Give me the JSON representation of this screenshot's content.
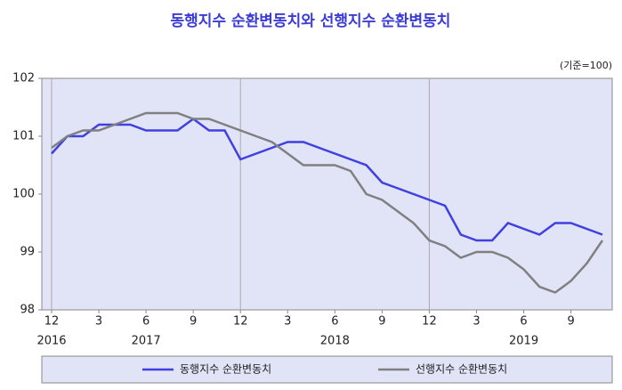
{
  "chart_data": {
    "type": "line",
    "title": "동행지수 순환변동치와 선행지수 순환변동치",
    "unit_label": "(기준=100)",
    "categories": [
      "12",
      null,
      null,
      "3",
      null,
      null,
      "6",
      null,
      null,
      "9",
      null,
      null,
      "12",
      null,
      null,
      "3",
      null,
      null,
      "6",
      null,
      null,
      "9",
      null,
      null,
      "12",
      null,
      null,
      "3",
      null,
      null,
      "6",
      null,
      null,
      "9",
      null,
      null
    ],
    "year_labels": [
      "2016",
      "2017",
      "2018",
      "2019"
    ],
    "series": [
      {
        "name": "동행지수 순환변동치",
        "color": "#4040e0",
        "values": [
          100.7,
          101.0,
          101.0,
          101.2,
          101.2,
          101.2,
          101.1,
          101.1,
          101.1,
          101.3,
          101.1,
          101.1,
          100.6,
          100.7,
          100.8,
          100.9,
          100.9,
          100.8,
          100.7,
          100.6,
          100.5,
          100.2,
          100.1,
          100.0,
          99.9,
          99.8,
          99.3,
          99.2,
          99.2,
          99.5,
          99.4,
          99.3,
          99.5,
          99.5,
          99.4,
          99.3
        ]
      },
      {
        "name": "선행지수 순환변동치",
        "color": "#808080",
        "values": [
          100.8,
          101.0,
          101.1,
          101.1,
          101.2,
          101.3,
          101.4,
          101.4,
          101.4,
          101.3,
          101.3,
          101.2,
          101.1,
          101.0,
          100.9,
          100.7,
          100.5,
          100.5,
          100.5,
          100.4,
          100.0,
          99.9,
          99.7,
          99.5,
          99.2,
          99.1,
          98.9,
          99.0,
          99.0,
          98.9,
          98.7,
          98.4,
          98.3,
          98.5,
          98.8,
          99.2
        ]
      }
    ],
    "ylim": [
      98,
      102
    ],
    "yticks": [
      98,
      99,
      100,
      101,
      102
    ],
    "grid": true
  }
}
